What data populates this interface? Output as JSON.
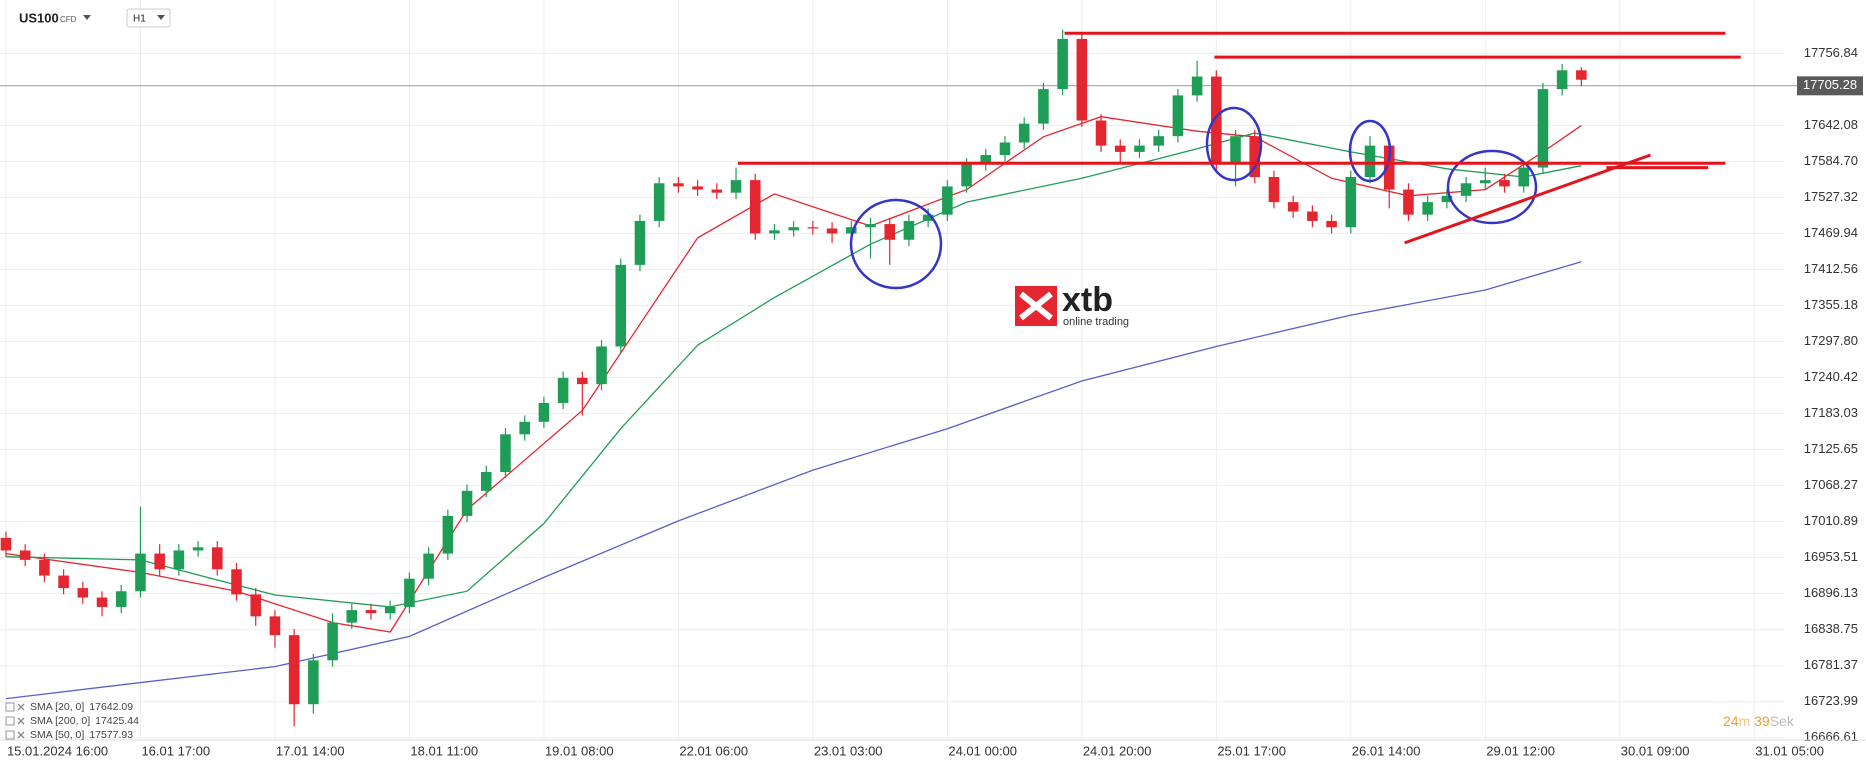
{
  "chart_data": {
    "type": "candlestick",
    "instrument": "US100",
    "instrument_type": "CFD",
    "timeframe": "H1",
    "open": [
      16985,
      16965,
      16950,
      16925,
      16905,
      16890,
      16875,
      16900,
      16960,
      16935,
      16965,
      16970,
      16935,
      16895,
      16860,
      16830,
      16720,
      16790,
      16850,
      16870,
      16865,
      16875,
      16920,
      16960,
      17020,
      17060,
      17090,
      17150,
      17170,
      17200,
      17240,
      17230,
      17290,
      17420,
      17490,
      17550,
      17545,
      17540,
      17535,
      17555,
      17470,
      17475,
      17480,
      17478,
      17470,
      17480,
      17485,
      17460,
      17490,
      17500,
      17545,
      17580,
      17595,
      17615,
      17645,
      17700,
      17780,
      17650,
      17610,
      17600,
      17610,
      17625,
      17690,
      17720,
      17580,
      17625,
      17560,
      17520,
      17505,
      17490,
      17480,
      17560,
      17610,
      17540,
      17500,
      17520,
      17530,
      17550,
      17555,
      17545,
      17575,
      17700,
      17730
    ],
    "high": [
      16995,
      16975,
      16960,
      16935,
      16915,
      16900,
      16910,
      17035,
      16975,
      16975,
      16980,
      16980,
      16945,
      16905,
      16870,
      16840,
      16800,
      16865,
      16880,
      16880,
      16885,
      16930,
      16970,
      17030,
      17070,
      17100,
      17160,
      17180,
      17210,
      17250,
      17250,
      17300,
      17430,
      17500,
      17560,
      17560,
      17555,
      17550,
      17575,
      17565,
      17485,
      17490,
      17490,
      17488,
      17490,
      17495,
      17495,
      17500,
      17510,
      17555,
      17590,
      17605,
      17625,
      17655,
      17710,
      17795,
      17790,
      17660,
      17620,
      17620,
      17635,
      17700,
      17745,
      17730,
      17635,
      17635,
      17570,
      17530,
      17515,
      17500,
      17570,
      17625,
      17620,
      17550,
      17530,
      17540,
      17560,
      17575,
      17565,
      17585,
      17710,
      17740,
      17735
    ],
    "low": [
      16955,
      16940,
      16915,
      16895,
      16880,
      16860,
      16865,
      16890,
      16925,
      16925,
      16955,
      16925,
      16885,
      16845,
      16810,
      16685,
      16705,
      16780,
      16840,
      16855,
      16855,
      16865,
      16910,
      16950,
      17010,
      17050,
      17080,
      17140,
      17160,
      17190,
      17180,
      17220,
      17280,
      17410,
      17480,
      17535,
      17530,
      17525,
      17525,
      17460,
      17460,
      17465,
      17468,
      17455,
      17460,
      17430,
      17420,
      17450,
      17480,
      17490,
      17535,
      17570,
      17585,
      17605,
      17635,
      17690,
      17640,
      17600,
      17580,
      17590,
      17600,
      17615,
      17680,
      17570,
      17545,
      17550,
      17510,
      17495,
      17480,
      17470,
      17470,
      17550,
      17510,
      17490,
      17490,
      17510,
      17520,
      17540,
      17535,
      17535,
      17565,
      17690,
      17705
    ],
    "close": [
      16965,
      16950,
      16925,
      16905,
      16890,
      16875,
      16900,
      16960,
      16935,
      16965,
      16970,
      16935,
      16895,
      16860,
      16830,
      16720,
      16790,
      16850,
      16870,
      16865,
      16875,
      16920,
      16960,
      17020,
      17060,
      17090,
      17150,
      17170,
      17200,
      17240,
      17230,
      17290,
      17420,
      17490,
      17550,
      17545,
      17540,
      17535,
      17555,
      17470,
      17475,
      17480,
      17478,
      17470,
      17480,
      17485,
      17460,
      17490,
      17500,
      17545,
      17580,
      17595,
      17615,
      17645,
      17700,
      17780,
      17650,
      17610,
      17600,
      17610,
      17625,
      17690,
      17720,
      17580,
      17625,
      17560,
      17520,
      17505,
      17490,
      17480,
      17560,
      17610,
      17540,
      17500,
      17520,
      17530,
      17550,
      17555,
      17545,
      17575,
      17700,
      17730,
      17715
    ],
    "up_color": "#1f9d57",
    "down_color": "#e3262f",
    "xlim": [
      -0.31,
      92.6
    ],
    "xticks": [
      {
        "value": 0,
        "label": "15.01.2024  16:00"
      },
      {
        "value": 7,
        "label": "16.01  17:00"
      },
      {
        "value": 14,
        "label": "17.01  14:00"
      },
      {
        "value": 21,
        "label": "18.01  11:00"
      },
      {
        "value": 28,
        "label": "19.01  08:00"
      },
      {
        "value": 35,
        "label": "22.01  06:00"
      },
      {
        "value": 42,
        "label": "23.01  03:00"
      },
      {
        "value": 49,
        "label": "24.01  00:00"
      },
      {
        "value": 56,
        "label": "24.01  20:00"
      },
      {
        "value": 63,
        "label": "25.01  17:00"
      },
      {
        "value": 70,
        "label": "26.01  14:00"
      },
      {
        "value": 77,
        "label": "29.01  12:00"
      },
      {
        "value": 84,
        "label": "30.01  09:00"
      },
      {
        "value": 91,
        "label": "31.01  05:00"
      }
    ],
    "ylim": [
      16663,
      17842
    ],
    "yticks": [
      17756.84,
      17642.08,
      {
        "value": 17584.7,
        "label": "17584.70"
      },
      17527.32,
      17469.94,
      17412.56,
      17355.18,
      {
        "value": 17297.8,
        "label": "17297.80"
      },
      17240.42,
      17183.03,
      17125.65,
      17068.27,
      17010.89,
      16953.51,
      16896.13,
      16838.75,
      16781.37,
      16723.99,
      16666.61
    ],
    "grid": true,
    "current_price": 17705.28,
    "series": [
      {
        "name": "SMA [20, 0]",
        "legend_value": 17642.09,
        "color": "#e3262f",
        "x": [
          0,
          7,
          12,
          17,
          20,
          24,
          30,
          36,
          40,
          45,
          50,
          54,
          57,
          62,
          65,
          69,
          73,
          77,
          80,
          82
        ],
        "values": [
          16960,
          16930,
          16900,
          16850,
          16835,
          17030,
          17188,
          17463,
          17533,
          17482,
          17540,
          17624,
          17656,
          17633,
          17624,
          17558,
          17530,
          17540,
          17600,
          17642
        ]
      },
      {
        "name": "SMA [200, 0]",
        "legend_value": 17425.44,
        "color": "#5a5fc8",
        "x": [
          0,
          14,
          21,
          28,
          35,
          42,
          49,
          56,
          63,
          70,
          77,
          82
        ],
        "values": [
          16729,
          16780,
          16828,
          16922,
          17012,
          17093,
          17159,
          17235,
          17290,
          17340,
          17380,
          17425
        ]
      },
      {
        "name": "SMA [50, 0]",
        "legend_value": 17577.93,
        "color": "#1f9d57",
        "x": [
          0,
          7,
          14,
          20,
          24,
          28,
          32,
          36,
          40,
          45,
          50,
          56,
          62,
          65,
          70,
          75,
          79,
          82
        ],
        "values": [
          16955,
          16950,
          16894,
          16875,
          16900,
          17008,
          17159,
          17292,
          17368,
          17453,
          17520,
          17558,
          17605,
          17630,
          17600,
          17573,
          17560,
          17578
        ]
      }
    ],
    "levels": [
      {
        "value": 17789,
        "from": 55.1,
        "to": 89.5,
        "color": "#e3141c"
      },
      {
        "value": 17751,
        "from": 62.9,
        "to": 90.3,
        "color": "#e3141c"
      },
      {
        "value": 17582,
        "from": 38.1,
        "to": 89.5,
        "color": "#e3141c"
      },
      {
        "value": 17575,
        "from": 83.3,
        "to": 88.6,
        "color": "#e3141c"
      }
    ],
    "trendlines": [
      {
        "x": [
          72.8,
          85.6
        ],
        "values": [
          17455,
          17595
        ],
        "color": "#e3141c"
      }
    ],
    "watermark": {
      "brand": "xtb",
      "tagline": "online trading"
    },
    "timer": [
      "24",
      "m",
      "39",
      "Sek"
    ]
  }
}
